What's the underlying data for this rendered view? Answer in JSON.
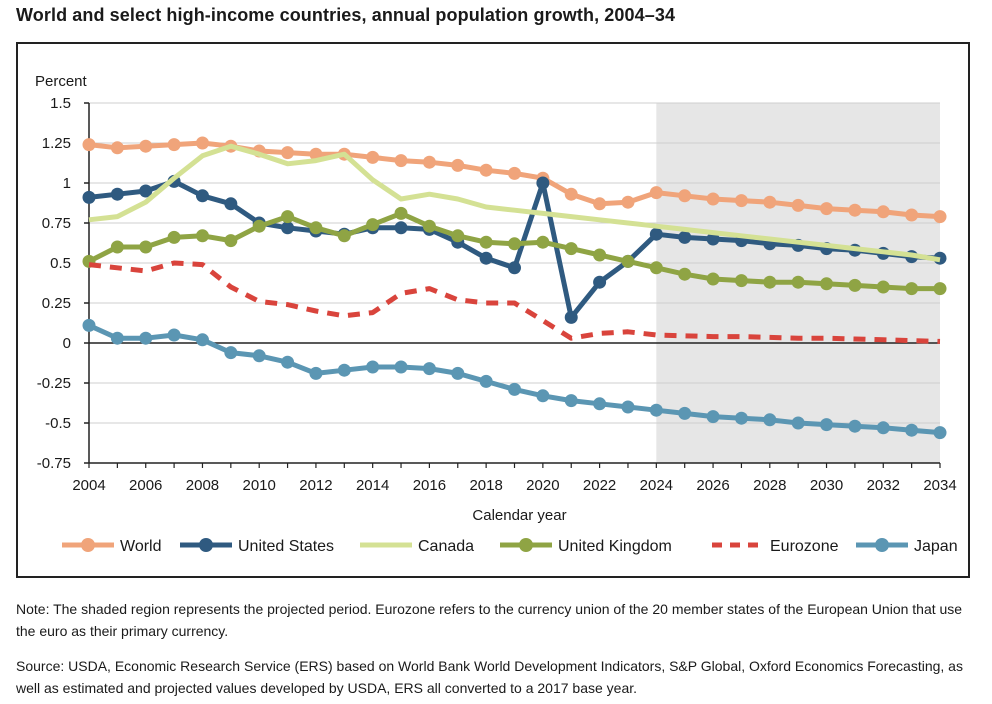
{
  "chart_data": {
    "type": "line",
    "title": "World and select high-income countries, annual population growth, 2004–34",
    "ylabel": "Percent",
    "xlabel": "Calendar year",
    "ylim": [
      -0.75,
      1.5
    ],
    "xlim": [
      2004,
      2034
    ],
    "yticks": [
      1.5,
      1.25,
      1,
      0.75,
      0.5,
      0.25,
      0,
      -0.25,
      -0.5,
      -0.75
    ],
    "ytick_labels": [
      "1.5",
      "1.25",
      "1",
      "0.75",
      "0.5",
      "0.25",
      "0",
      "-0.25",
      "-0.5",
      "-0.75"
    ],
    "xtick_labels": [
      "2004",
      "2006",
      "2008",
      "2010",
      "2012",
      "2014",
      "2016",
      "2018",
      "2020",
      "2022",
      "2024",
      "2026",
      "2028",
      "2030",
      "2032",
      "2034"
    ],
    "grid": true,
    "projected_period": [
      2024,
      2034
    ],
    "legend_position": "bottom",
    "x": [
      2004,
      2005,
      2006,
      2007,
      2008,
      2009,
      2010,
      2011,
      2012,
      2013,
      2014,
      2015,
      2016,
      2017,
      2018,
      2019,
      2020,
      2021,
      2022,
      2023,
      2024,
      2025,
      2026,
      2027,
      2028,
      2029,
      2030,
      2031,
      2032,
      2033,
      2034
    ],
    "series": [
      {
        "name": "World",
        "color": "#f0a47a",
        "style": "marker",
        "values": [
          1.24,
          1.22,
          1.23,
          1.24,
          1.25,
          1.23,
          1.2,
          1.19,
          1.18,
          1.18,
          1.16,
          1.14,
          1.13,
          1.11,
          1.08,
          1.06,
          1.03,
          0.93,
          0.87,
          0.88,
          0.94,
          0.92,
          0.9,
          0.89,
          0.88,
          0.86,
          0.84,
          0.83,
          0.82,
          0.8,
          0.79
        ]
      },
      {
        "name": "United States",
        "color": "#2f5a80",
        "style": "marker",
        "values": [
          0.91,
          0.93,
          0.95,
          1.01,
          0.92,
          0.87,
          0.75,
          0.72,
          0.7,
          0.68,
          0.72,
          0.72,
          0.71,
          0.63,
          0.53,
          0.47,
          1.0,
          0.16,
          0.38,
          0.51,
          0.68,
          0.66,
          0.65,
          0.64,
          0.62,
          0.61,
          0.59,
          0.58,
          0.56,
          0.54,
          0.53
        ]
      },
      {
        "name": "Canada",
        "color": "#d4e194",
        "style": "line",
        "values": [
          0.77,
          0.79,
          0.88,
          1.03,
          1.17,
          1.23,
          1.18,
          1.12,
          1.14,
          1.18,
          1.02,
          0.9,
          0.93,
          0.9,
          0.85,
          0.83,
          0.81,
          0.79,
          0.77,
          0.75,
          0.73,
          0.71,
          0.69,
          0.67,
          0.65,
          0.63,
          0.61,
          0.59,
          0.57,
          0.55,
          0.52
        ]
      },
      {
        "name": "United Kingdom",
        "color": "#8fa444",
        "style": "marker",
        "values": [
          0.51,
          0.6,
          0.6,
          0.66,
          0.67,
          0.64,
          0.73,
          0.79,
          0.72,
          0.67,
          0.74,
          0.81,
          0.73,
          0.67,
          0.63,
          0.62,
          0.63,
          0.59,
          0.55,
          0.51,
          0.47,
          0.43,
          0.4,
          0.39,
          0.38,
          0.38,
          0.37,
          0.36,
          0.35,
          0.34,
          0.34
        ]
      },
      {
        "name": "Eurozone",
        "color": "#d9443c",
        "style": "dashed",
        "values": [
          0.49,
          0.47,
          0.45,
          0.5,
          0.49,
          0.35,
          0.26,
          0.24,
          0.2,
          0.17,
          0.19,
          0.31,
          0.34,
          0.27,
          0.25,
          0.25,
          0.14,
          0.03,
          0.06,
          0.07,
          0.05,
          0.045,
          0.04,
          0.04,
          0.035,
          0.03,
          0.03,
          0.025,
          0.02,
          0.015,
          0.01
        ]
      },
      {
        "name": "Japan",
        "color": "#5b96b3",
        "style": "marker",
        "values": [
          0.11,
          0.03,
          0.03,
          0.05,
          0.02,
          -0.06,
          -0.08,
          -0.12,
          -0.19,
          -0.17,
          -0.15,
          -0.15,
          -0.16,
          -0.19,
          -0.24,
          -0.29,
          -0.33,
          -0.36,
          -0.38,
          -0.4,
          -0.42,
          -0.44,
          -0.46,
          -0.47,
          -0.48,
          -0.5,
          -0.51,
          -0.52,
          -0.53,
          -0.545,
          -0.56
        ]
      }
    ]
  },
  "note": "Note: The shaded region represents the projected period. Eurozone refers to the currency union of the 20 member states of the European Union that use the euro as their primary currency.",
  "source": "Source: USDA, Economic Research Service (ERS) based on World Bank World Development Indicators, S&P Global, Oxford Economics Forecasting, as well as estimated and projected values developed by USDA, ERS all converted to a 2017 base year."
}
